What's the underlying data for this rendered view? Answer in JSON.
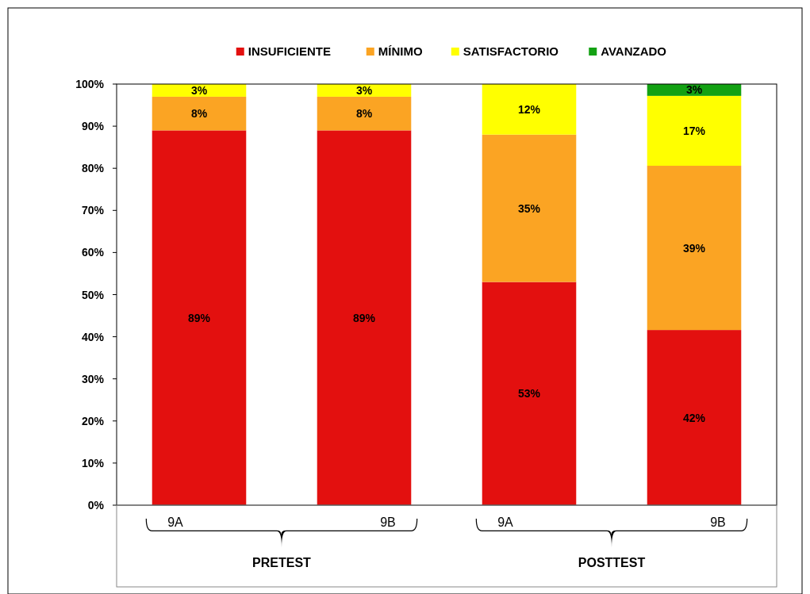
{
  "chart_data": {
    "type": "bar",
    "stacked": true,
    "categories": [
      "9A",
      "9B",
      "9A",
      "9B"
    ],
    "series": [
      {
        "name": "INSUFICIENTE",
        "color": "#e3100f",
        "values": [
          89,
          89,
          53,
          41.6
        ],
        "value_labels": [
          "89%",
          "89%",
          "53%",
          "42%"
        ]
      },
      {
        "name": "MÍNIMO",
        "color": "#fba423",
        "values": [
          8,
          8,
          35,
          39
        ],
        "value_labels": [
          "8%",
          "8%",
          "35%",
          "39%"
        ]
      },
      {
        "name": "SATISFACTORIO",
        "color": "#ffff00",
        "values": [
          3,
          3,
          12,
          16.6
        ],
        "value_labels": [
          "3%",
          "3%",
          "12%",
          "17%"
        ]
      },
      {
        "name": "AVANZADO",
        "color": "#13a113",
        "values": [
          null,
          null,
          null,
          2.8
        ],
        "value_labels": [
          null,
          null,
          null,
          "3%"
        ]
      }
    ],
    "ylim": [
      0,
      100
    ],
    "yticks": [
      {
        "value": 0,
        "label": "0%"
      },
      {
        "value": 10,
        "label": "10%"
      },
      {
        "value": 20,
        "label": "20%"
      },
      {
        "value": 30,
        "label": "30%"
      },
      {
        "value": 40,
        "label": "40%"
      },
      {
        "value": 50,
        "label": "50%"
      },
      {
        "value": 60,
        "label": "60%"
      },
      {
        "value": 70,
        "label": "70%"
      },
      {
        "value": 80,
        "label": "80%"
      },
      {
        "value": 90,
        "label": "90%"
      },
      {
        "value": 100,
        "label": "100%"
      }
    ],
    "grid": false,
    "legend": "top",
    "annotations": [
      "PRETEST",
      "POSTTEST"
    ]
  }
}
